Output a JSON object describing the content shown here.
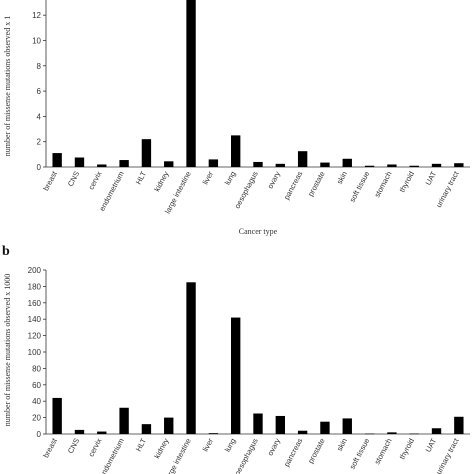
{
  "chart_data": [
    {
      "type": "bar",
      "panel_label": "",
      "categories": [
        "breast",
        "CNS",
        "cervix",
        "endometrium",
        "HLT",
        "kidney",
        "large intestine",
        "liver",
        "lung",
        "oesophagus",
        "ovary",
        "pancreas",
        "prostate",
        "skin",
        "soft tissue",
        "stomach",
        "thyroid",
        "UAT",
        "urinary tract"
      ],
      "values": [
        1.1,
        0.75,
        0.2,
        0.55,
        2.2,
        0.45,
        13.2,
        0.6,
        2.5,
        0.4,
        0.25,
        1.25,
        0.35,
        0.65,
        0.1,
        0.2,
        0.1,
        0.25,
        0.3
      ],
      "yticks": [
        0,
        2,
        4,
        6,
        8,
        10,
        12
      ],
      "ylim": [
        0,
        13.2
      ],
      "ylabel": "number of missense mutations observed x 1",
      "xlabel": "Cancer type",
      "colors": {
        "bar": "#000000"
      }
    },
    {
      "type": "bar",
      "panel_label": "b",
      "categories": [
        "breast",
        "CNS",
        "cervix",
        "endometrium",
        "HLT",
        "kidney",
        "large intestine",
        "liver",
        "lung",
        "oesophagus",
        "ovary",
        "pancreas",
        "prostate",
        "skin",
        "soft tissue",
        "stomach",
        "thyroid",
        "UAT",
        "urinary tract"
      ],
      "values": [
        44,
        5,
        3,
        32,
        12,
        20,
        185,
        1,
        142,
        25,
        22,
        4,
        15,
        19,
        0.5,
        2,
        0.5,
        7,
        21
      ],
      "yticks": [
        0,
        20,
        40,
        60,
        80,
        100,
        120,
        140,
        160,
        180,
        200
      ],
      "ylim": [
        0,
        200
      ],
      "ylabel": "number of missense mutations observed x 1000",
      "xlabel": "",
      "colors": {
        "bar": "#000000"
      }
    }
  ]
}
